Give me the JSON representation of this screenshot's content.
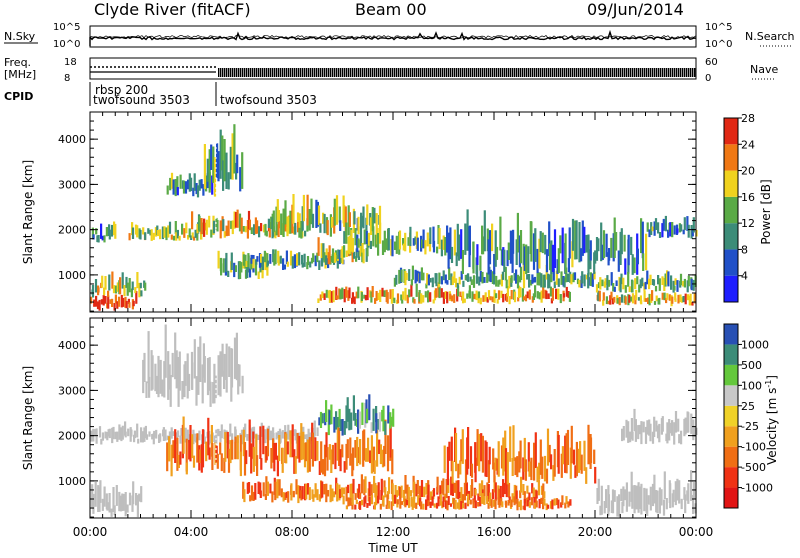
{
  "header": {
    "station": "Clyde River (fitACF)",
    "beam": "Beam 00",
    "date": "09/Jun/2014"
  },
  "status_panels": {
    "nsky_label": "N.Sky",
    "nsearch_label": "N.Search",
    "freq_label_line1": "Freq.",
    "freq_label_line2": "[MHz]",
    "nave_label": "Nave",
    "cpid_label": "CPID",
    "nsky_ticks": [
      "10^5",
      "10^0"
    ],
    "nsearch_ticks": [
      "10^5",
      "10^0"
    ],
    "freq_ticks": [
      "18",
      "8"
    ],
    "nave_ticks": [
      "60",
      "0"
    ],
    "cpid_entries": [
      {
        "line1": "rbsp 200",
        "line2": "twofsound 3503",
        "start_hour": 0.0
      },
      {
        "line1": "",
        "line2": "twofsound 3503",
        "start_hour": 5.1
      }
    ]
  },
  "chart_data": [
    {
      "type": "heatmap",
      "title": "",
      "xlabel": "",
      "ylabel": "Slant Range [km]",
      "xlim": [
        0,
        24
      ],
      "ylim": [
        180,
        4600
      ],
      "yticks": [
        "1000",
        "2000",
        "3000",
        "4000"
      ],
      "colorbar": {
        "label": "Power [dB]",
        "ticks": [
          "4",
          "8",
          "12",
          "16",
          "20",
          "24",
          "28"
        ],
        "colors": [
          "#1e1eff",
          "#2050c8",
          "#3c8c78",
          "#5aaa46",
          "#f0d21e",
          "#f07814",
          "#e12814"
        ]
      },
      "bands": [
        {
          "from": 0.0,
          "to": 1.8,
          "r1": 200,
          "r2": 560,
          "intensity": 0.95
        },
        {
          "from": 0.0,
          "to": 2.2,
          "r1": 500,
          "r2": 950,
          "intensity": 0.55
        },
        {
          "from": 0.0,
          "to": 1.0,
          "r1": 1700,
          "r2": 2100,
          "intensity": 0.35
        },
        {
          "from": 1.5,
          "to": 4.5,
          "r1": 1750,
          "r2": 2100,
          "intensity": 0.55
        },
        {
          "from": 3.0,
          "to": 4.8,
          "r1": 2700,
          "r2": 3200,
          "intensity": 0.35
        },
        {
          "from": 4.5,
          "to": 6.0,
          "r1": 2700,
          "r2": 4000,
          "intensity": 0.4
        },
        {
          "from": 4.0,
          "to": 8.5,
          "r1": 1800,
          "r2": 2300,
          "intensity": 0.65
        },
        {
          "from": 5.0,
          "to": 7.0,
          "r1": 900,
          "r2": 1400,
          "intensity": 0.45
        },
        {
          "from": 6.0,
          "to": 10.0,
          "r1": 1100,
          "r2": 1500,
          "intensity": 0.4
        },
        {
          "from": 7.0,
          "to": 11.5,
          "r1": 1800,
          "r2": 2600,
          "intensity": 0.5
        },
        {
          "from": 9.0,
          "to": 11.0,
          "r1": 1200,
          "r2": 1700,
          "intensity": 0.55
        },
        {
          "from": 10.0,
          "to": 14.0,
          "r1": 1400,
          "r2": 2000,
          "intensity": 0.45
        },
        {
          "from": 9.0,
          "to": 19.0,
          "r1": 350,
          "r2": 700,
          "intensity": 0.7
        },
        {
          "from": 12.0,
          "to": 20.0,
          "r1": 700,
          "r2": 1100,
          "intensity": 0.45
        },
        {
          "from": 14.0,
          "to": 22.0,
          "r1": 1000,
          "r2": 2100,
          "intensity": 0.35
        },
        {
          "from": 20.0,
          "to": 24.0,
          "r1": 300,
          "r2": 600,
          "intensity": 0.65
        },
        {
          "from": 20.0,
          "to": 24.0,
          "r1": 600,
          "r2": 1000,
          "intensity": 0.45
        },
        {
          "from": 22.0,
          "to": 24.0,
          "r1": 1800,
          "r2": 2200,
          "intensity": 0.35
        }
      ]
    },
    {
      "type": "heatmap",
      "title": "",
      "xlabel": "Time UT",
      "ylabel": "Slant Range [km]",
      "xlim": [
        0,
        24
      ],
      "ylim": [
        180,
        4600
      ],
      "yticks": [
        "1000",
        "2000",
        "3000",
        "4000"
      ],
      "xticks": [
        "00:00",
        "04:00",
        "08:00",
        "12:00",
        "16:00",
        "20:00",
        "00:00"
      ],
      "colorbar": {
        "label": "Velocity [m s",
        "unit_exponent": "-1",
        "unit_close": "]",
        "ticks": [
          "-1000",
          "-500",
          "-100",
          "-25",
          "25",
          "100",
          "500",
          "1000"
        ],
        "colors": [
          "#e11414",
          "#f03214",
          "#f06e14",
          "#f0a01e",
          "#f0d228",
          "#c8c8c8",
          "#64c83c",
          "#3c8c78",
          "#2850b4"
        ]
      },
      "ground_scatter_color": "#bebebe",
      "bands": [
        {
          "from": 0.0,
          "to": 2.0,
          "r1": 200,
          "r2": 900,
          "kind": "ground"
        },
        {
          "from": 0.0,
          "to": 9.0,
          "r1": 1800,
          "r2": 2200,
          "kind": "ground"
        },
        {
          "from": 2.0,
          "to": 6.0,
          "r1": 2600,
          "r2": 4000,
          "kind": "ground"
        },
        {
          "from": 3.0,
          "to": 12.0,
          "r1": 1100,
          "r2": 2100,
          "kind": "neg"
        },
        {
          "from": 6.0,
          "to": 18.0,
          "r1": 500,
          "r2": 1000,
          "kind": "neg"
        },
        {
          "from": 10.0,
          "to": 19.0,
          "r1": 350,
          "r2": 650,
          "kind": "neg"
        },
        {
          "from": 14.0,
          "to": 20.0,
          "r1": 900,
          "r2": 2000,
          "kind": "neg"
        },
        {
          "from": 9.0,
          "to": 12.0,
          "r1": 2000,
          "r2": 2700,
          "kind": "pos"
        },
        {
          "from": 20.0,
          "to": 24.0,
          "r1": 200,
          "r2": 1000,
          "kind": "ground"
        },
        {
          "from": 21.0,
          "to": 24.0,
          "r1": 1800,
          "r2": 2400,
          "kind": "ground"
        }
      ]
    }
  ]
}
